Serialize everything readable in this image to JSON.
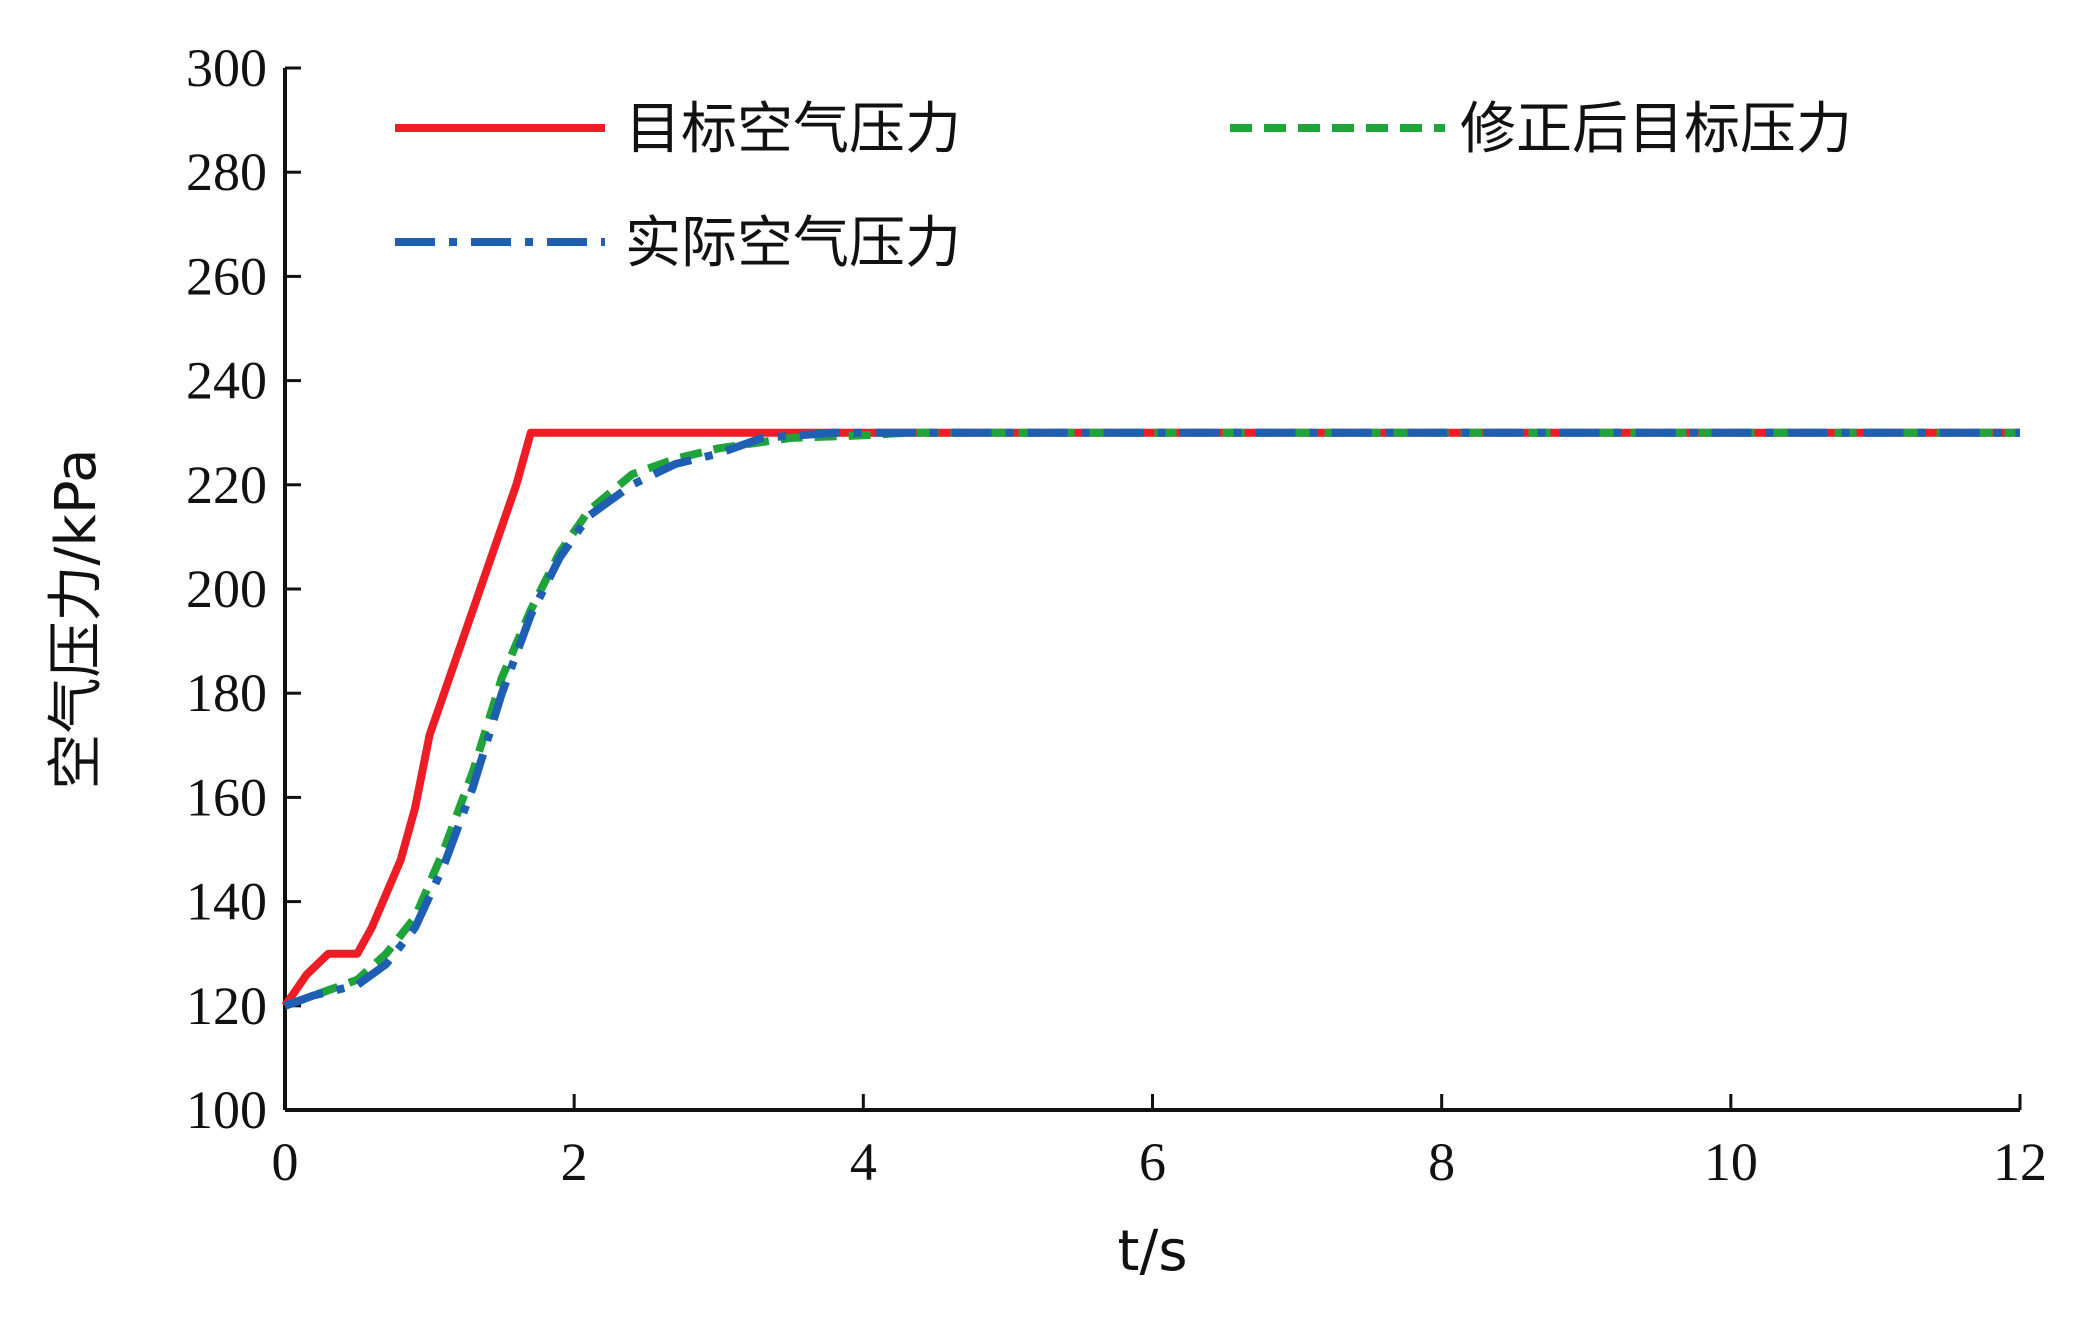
{
  "chart_data": {
    "type": "line",
    "title": "",
    "xlabel": "t/s",
    "ylabel": "空气压力/kPa",
    "xlim": [
      0,
      12
    ],
    "ylim": [
      100,
      300
    ],
    "x_ticks": [
      0,
      2,
      4,
      6,
      8,
      10,
      12
    ],
    "y_ticks": [
      100,
      120,
      140,
      160,
      180,
      200,
      220,
      240,
      260,
      280,
      300
    ],
    "grid": false,
    "legend_position": "top",
    "series": [
      {
        "name": "目标空气压力",
        "color": "#ee1c25",
        "dash": "solid",
        "points": [
          [
            0,
            120
          ],
          [
            0.15,
            126
          ],
          [
            0.3,
            130
          ],
          [
            0.5,
            130
          ],
          [
            0.6,
            135
          ],
          [
            0.8,
            148
          ],
          [
            0.9,
            158
          ],
          [
            1.0,
            172
          ],
          [
            1.2,
            188
          ],
          [
            1.4,
            204
          ],
          [
            1.6,
            220
          ],
          [
            1.7,
            230
          ],
          [
            12,
            230
          ]
        ]
      },
      {
        "name": "修正后目标压力",
        "color": "#1fa43a",
        "dash": "dash",
        "points": [
          [
            0,
            120
          ],
          [
            0.3,
            123
          ],
          [
            0.5,
            125
          ],
          [
            0.7,
            130
          ],
          [
            0.9,
            137
          ],
          [
            1.1,
            150
          ],
          [
            1.3,
            165
          ],
          [
            1.5,
            183
          ],
          [
            1.7,
            196
          ],
          [
            1.9,
            207
          ],
          [
            2.1,
            215
          ],
          [
            2.4,
            222
          ],
          [
            2.7,
            225
          ],
          [
            3.0,
            227
          ],
          [
            3.5,
            229
          ],
          [
            4.0,
            229.5
          ],
          [
            4.3,
            230
          ],
          [
            12,
            230
          ]
        ]
      },
      {
        "name": "实际空气压力",
        "color": "#1e5fb4",
        "dash": "dashdot",
        "points": [
          [
            0,
            120
          ],
          [
            0.2,
            122
          ],
          [
            0.5,
            124
          ],
          [
            0.7,
            128
          ],
          [
            0.9,
            135
          ],
          [
            1.1,
            147
          ],
          [
            1.3,
            162
          ],
          [
            1.5,
            180
          ],
          [
            1.7,
            195
          ],
          [
            1.9,
            206
          ],
          [
            2.1,
            214
          ],
          [
            2.4,
            220
          ],
          [
            2.7,
            224
          ],
          [
            3.0,
            226
          ],
          [
            3.3,
            229
          ],
          [
            3.8,
            230
          ],
          [
            12,
            230
          ]
        ]
      }
    ]
  }
}
